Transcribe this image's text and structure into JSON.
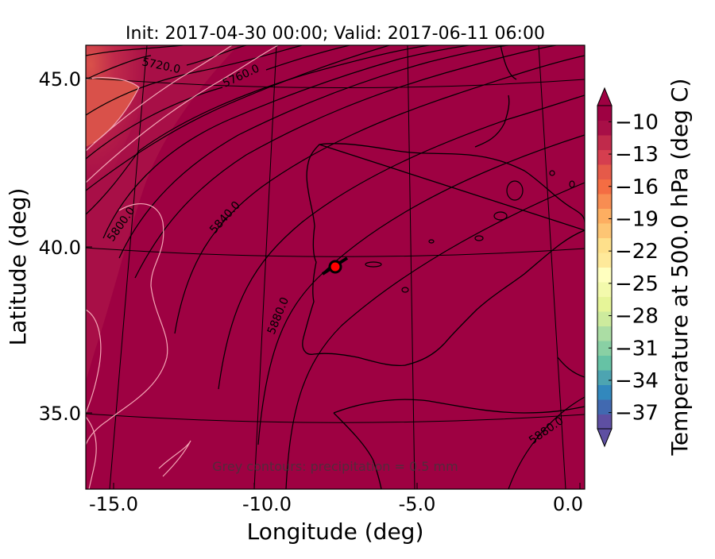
{
  "chart_data": {
    "type": "heatmap",
    "title": "Init: 2017-04-30 00:00; Valid: 2017-06-11 06:00",
    "xlabel": "Longitude (deg)",
    "ylabel": "Latitude (deg)",
    "x_ticks": [
      "-15.0",
      "-10.0",
      "-5.0",
      "0.0"
    ],
    "y_ticks": [
      "45.0",
      "40.0",
      "35.0"
    ],
    "xlim": [
      -16,
      0
    ],
    "ylim": [
      33,
      46
    ],
    "colorbar": {
      "label": "Temperature at 500.0 hPa (deg C)",
      "range": [
        -38.5,
        -8.5
      ],
      "extend": "both",
      "ticks": [
        "−10",
        "−13",
        "−16",
        "−19",
        "−22",
        "−25",
        "−28",
        "−31",
        "−34",
        "−37"
      ],
      "colors": [
        "#5e4fa2",
        "#4169b0",
        "#3288bd",
        "#4da4b1",
        "#66c2a5",
        "#89d0a4",
        "#abdda4",
        "#cdeb9d",
        "#e6f598",
        "#f3faac",
        "#ffffbf",
        "#fee99a",
        "#fee08b",
        "#fdc574",
        "#fdae61",
        "#f88d52",
        "#f46d43",
        "#e55a49",
        "#d53e4f",
        "#c02a4b",
        "#a80f47",
        "#9e0142"
      ]
    },
    "contour_labels": [
      "5720.0",
      "5760.0",
      "5800.0",
      "5840.0",
      "5880.0",
      "5880.0"
    ],
    "annotation": "Grey contours: precipitation = 0.5 mm",
    "marker": {
      "lon": -7.6,
      "lat": 39.3,
      "color": "#ff0000"
    }
  }
}
